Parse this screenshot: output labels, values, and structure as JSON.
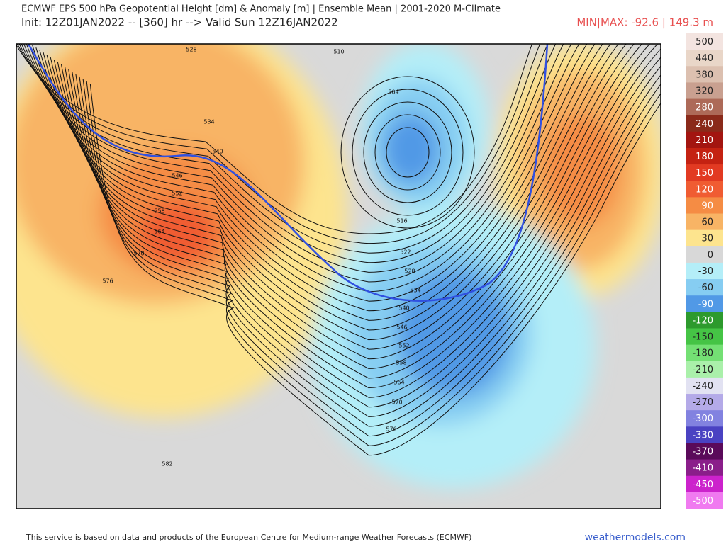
{
  "header": {
    "title": "ECMWF EPS 500 hPa Geopotential Height [dm] & Anomaly [m] | Ensemble Mean | 2001-2020 M-Climate",
    "subtitle": "Init: 12Z01JAN2022 -- [360] hr --> Valid Sun 12Z16JAN2022",
    "minmax": "MIN|MAX: -92.6 | 149.3 m"
  },
  "map": {
    "contour_labels": [
      528,
      534,
      540,
      546,
      552,
      558,
      564,
      570,
      576,
      582,
      510,
      504,
      516,
      522,
      528,
      534,
      540,
      546,
      552,
      558,
      564,
      570,
      576
    ]
  },
  "colorbar": {
    "levels": [
      500,
      440,
      380,
      320,
      280,
      240,
      210,
      180,
      150,
      120,
      90,
      60,
      30,
      0,
      -30,
      -60,
      -90,
      -120,
      -150,
      -180,
      -210,
      -240,
      -270,
      -300,
      -330,
      -370,
      -410,
      -450,
      -500
    ],
    "colors": [
      "#f3e4e0",
      "#e9d6c8",
      "#dcc0b0",
      "#c9a090",
      "#ad6a58",
      "#8a2a1a",
      "#a31510",
      "#c42212",
      "#e23a22",
      "#f05c32",
      "#f58c44",
      "#f8b465",
      "#fde48e",
      "#d8d8d8",
      "#b4eef8",
      "#86cdf2",
      "#5199e6",
      "#2d9a2d",
      "#45c445",
      "#74e074",
      "#aaf0aa",
      "#e2e2f2",
      "#b4aae8",
      "#8282e0",
      "#4a42c2",
      "#5a0a5a",
      "#8a1e8a",
      "#cc22cc",
      "#f07af0"
    ]
  },
  "footer": {
    "credit": "This service is based on data and products of the European Centre for Medium-range Weather Forecasts (ECMWF)",
    "site": "weathermodels.com"
  }
}
